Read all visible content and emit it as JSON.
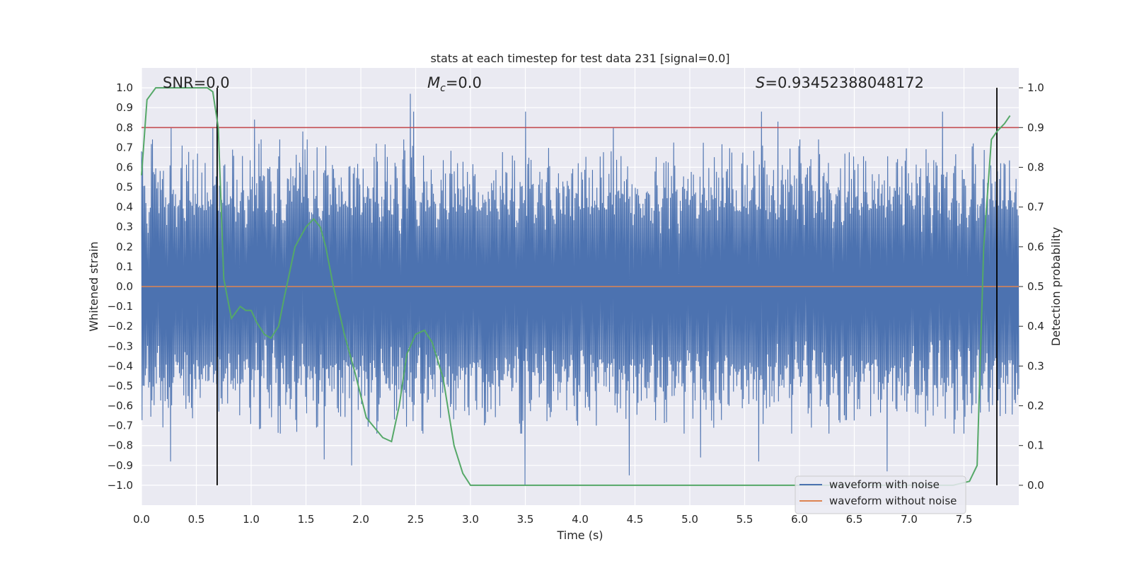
{
  "chart_data": {
    "type": "line",
    "title": "stats at each timestep for test data 231 [signal=0.0]",
    "xlabel": "Time (s)",
    "ylabel": "Whitened strain",
    "y2label": "Detection probability",
    "xlim": [
      0.0,
      8.0
    ],
    "ylim": [
      -1.1,
      1.1
    ],
    "y2lim": [
      -0.05,
      1.05
    ],
    "x_ticks": [
      "0.0",
      "0.5",
      "1.0",
      "1.5",
      "2.0",
      "2.5",
      "3.0",
      "3.5",
      "4.0",
      "4.5",
      "5.0",
      "5.5",
      "6.0",
      "6.5",
      "7.0",
      "7.5"
    ],
    "y_ticks": [
      "1.0",
      "0.9",
      "0.8",
      "0.7",
      "0.6",
      "0.5",
      "0.4",
      "0.3",
      "0.2",
      "0.1",
      "0.0",
      "−0.1",
      "−0.2",
      "−0.3",
      "−0.4",
      "−0.5",
      "−0.6",
      "−0.7",
      "−0.8",
      "−0.9",
      "−1.0"
    ],
    "y2_ticks": [
      "1.0",
      "0.9",
      "0.8",
      "0.7",
      "0.6",
      "0.5",
      "0.4",
      "0.3",
      "0.2",
      "0.1",
      "0.0"
    ],
    "grid": true,
    "annotations": {
      "snr": "SNR=0.0",
      "mc_symbol": "M",
      "mc_sub": "c",
      "mc_value": "=0.0",
      "s_symbol": "S",
      "s_value": "=0.93452388048172"
    },
    "legend": {
      "placement": "lower-right",
      "entries": [
        "waveform with noise",
        "waveform without noise"
      ]
    },
    "series": [
      {
        "name": "waveform with noise",
        "axis": "left",
        "color": "#4c72b0",
        "x_range": [
          0.0,
          8.0
        ],
        "count": 1600,
        "envelope_peaks": [
          {
            "x": 0.0,
            "y": 0.68
          },
          {
            "x": 0.27,
            "y": 0.8
          },
          {
            "x": 0.65,
            "y": 0.8
          },
          {
            "x": 1.03,
            "y": 0.84
          },
          {
            "x": 1.47,
            "y": 0.78
          },
          {
            "x": 2.45,
            "y": 0.97
          },
          {
            "x": 2.48,
            "y": 0.88
          },
          {
            "x": 3.5,
            "y": 0.88
          },
          {
            "x": 4.3,
            "y": 0.8
          },
          {
            "x": 5.65,
            "y": 0.88
          },
          {
            "x": 5.8,
            "y": 0.83
          },
          {
            "x": 7.3,
            "y": 0.88
          },
          {
            "x": 0.27,
            "y": -0.88
          },
          {
            "x": 1.67,
            "y": -0.87
          },
          {
            "x": 1.92,
            "y": -0.9
          },
          {
            "x": 3.5,
            "y": -1.0
          },
          {
            "x": 4.45,
            "y": -0.95
          },
          {
            "x": 5.1,
            "y": -0.86
          },
          {
            "x": 5.63,
            "y": -0.88
          },
          {
            "x": 6.8,
            "y": -0.93
          }
        ]
      },
      {
        "name": "waveform without noise",
        "axis": "left",
        "color": "#dd8452",
        "x": [
          0.0,
          8.0
        ],
        "y": [
          0.0,
          0.0
        ]
      },
      {
        "axis": "right",
        "color": "#55a868",
        "x": [
          0.0,
          0.05,
          0.13,
          0.3,
          0.6,
          0.65,
          0.7,
          0.75,
          0.82,
          0.9,
          0.95,
          1.0,
          1.05,
          1.12,
          1.18,
          1.25,
          1.3,
          1.4,
          1.5,
          1.57,
          1.63,
          1.68,
          1.75,
          1.85,
          1.95,
          2.05,
          2.2,
          2.28,
          2.35,
          2.42,
          2.5,
          2.58,
          2.65,
          2.75,
          2.85,
          2.93,
          3.0,
          3.4,
          3.6,
          7.4,
          7.55,
          7.62,
          7.68,
          7.75,
          7.8,
          7.87,
          7.92
        ],
        "y": [
          0.78,
          0.97,
          1.0,
          1.0,
          1.0,
          0.99,
          0.9,
          0.52,
          0.42,
          0.45,
          0.44,
          0.44,
          0.41,
          0.38,
          0.37,
          0.4,
          0.47,
          0.6,
          0.65,
          0.67,
          0.65,
          0.6,
          0.5,
          0.38,
          0.28,
          0.17,
          0.12,
          0.11,
          0.2,
          0.33,
          0.38,
          0.39,
          0.36,
          0.27,
          0.1,
          0.03,
          0.0,
          0.0,
          0.0,
          0.0,
          0.01,
          0.05,
          0.6,
          0.87,
          0.89,
          0.91,
          0.93
        ]
      },
      {
        "axis": "right",
        "color": "#c44e52",
        "x": [
          0.0,
          8.0
        ],
        "y": [
          0.9,
          0.9
        ]
      }
    ],
    "vertical_markers": [
      {
        "x": 0.69,
        "y2": [
          0.0,
          1.0
        ],
        "color": "#000000"
      },
      {
        "x": 7.8,
        "y2": [
          0.0,
          1.0
        ],
        "color": "#000000"
      }
    ]
  }
}
